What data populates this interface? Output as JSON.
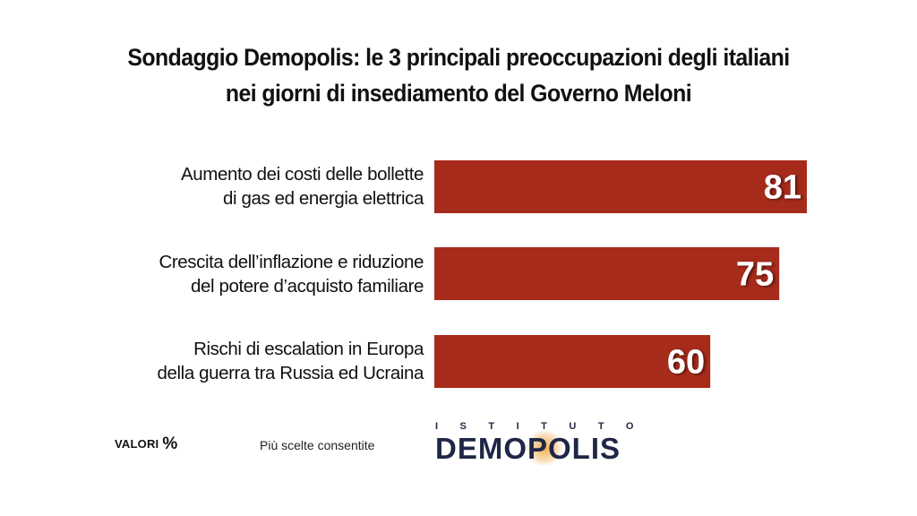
{
  "title_lines": [
    "Sondaggio Demopolis: le 3 principali preoccupazioni degli italiani",
    "nei giorni di insediamento del Governo Meloni"
  ],
  "chart_data": {
    "type": "bar",
    "orientation": "horizontal",
    "categories": [
      [
        "Aumento dei costi delle bollette",
        "di gas ed energia elettrica"
      ],
      [
        "Crescita dell’inflazione e riduzione",
        "del potere d’acquisto familiare"
      ],
      [
        "Rischi di escalation in Europa",
        "della guerra tra Russia ed Ucraina"
      ]
    ],
    "values": [
      81,
      75,
      60
    ],
    "data_labels": [
      "81",
      "75",
      "60"
    ],
    "xlim": [
      0,
      81
    ],
    "bar_color": "#a72b1b",
    "grid": false,
    "legend": "none"
  },
  "footer": {
    "valori_label": "VALORI",
    "valori_unit": "%",
    "note": "Più scelte consentite"
  },
  "logo": {
    "top_text": "ISTITUTO",
    "main_text": "DEMOPOLIS",
    "color": "#1f2746"
  }
}
